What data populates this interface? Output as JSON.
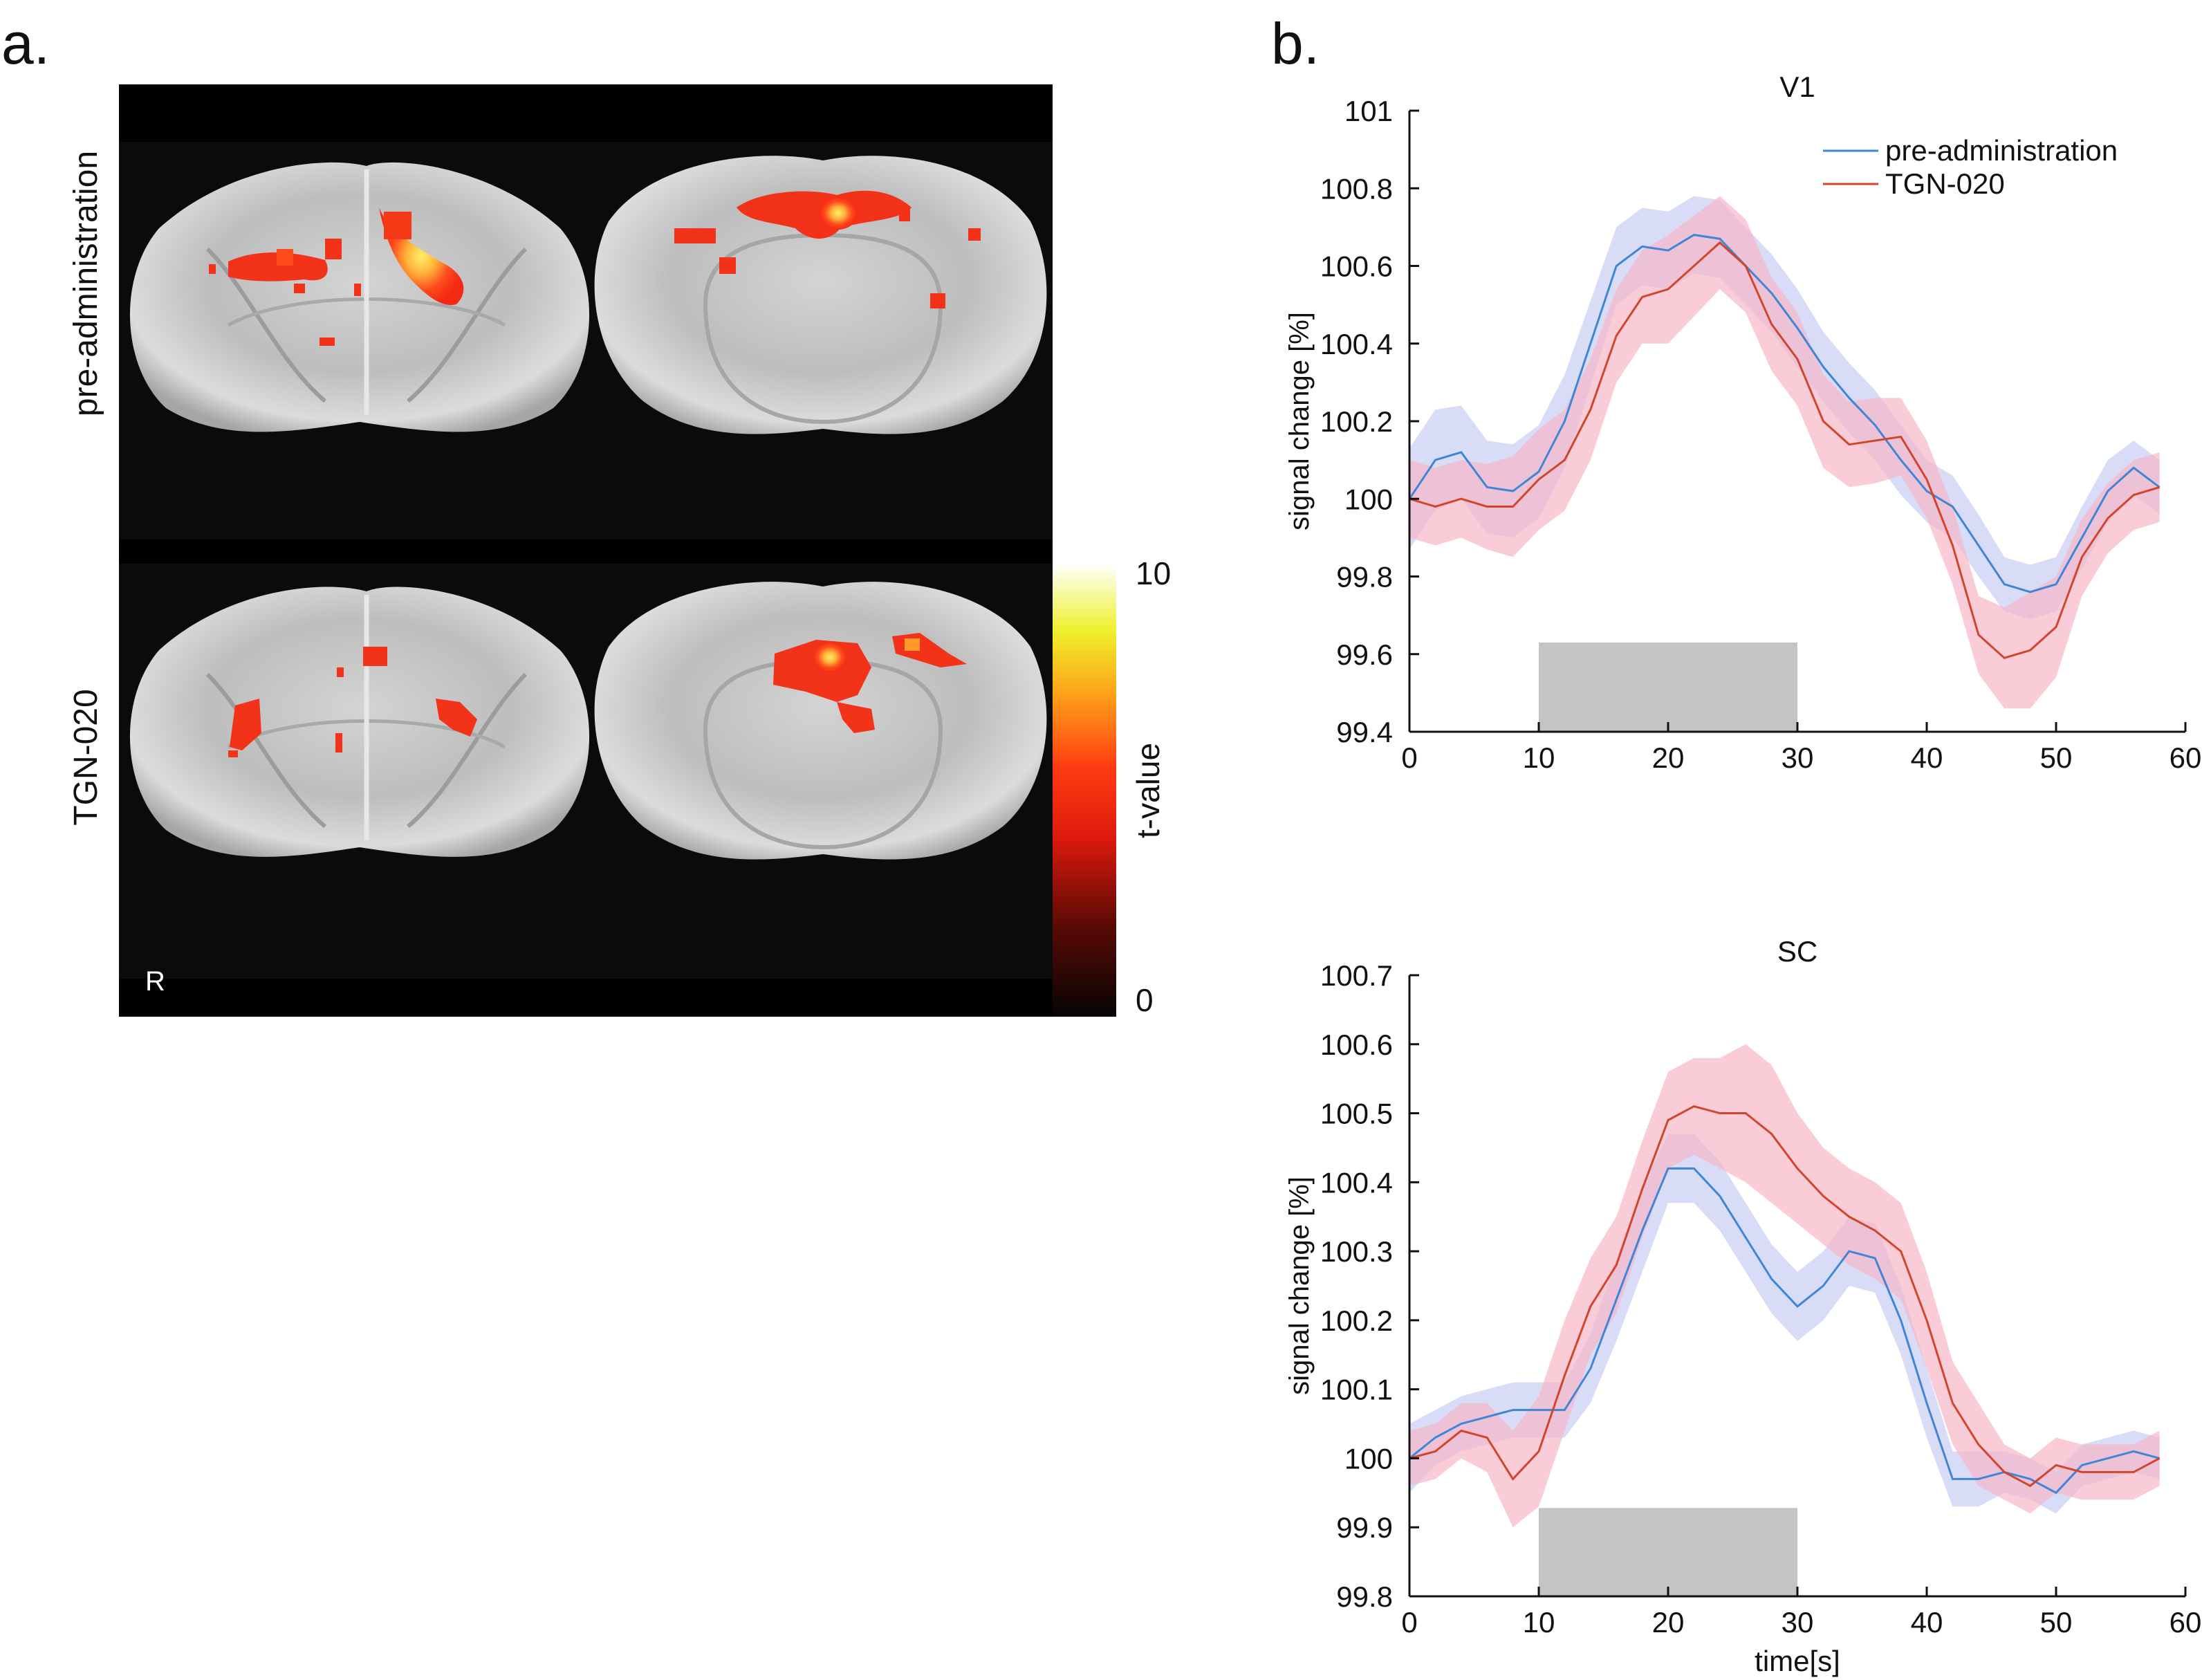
{
  "panel_a": {
    "label": "a.",
    "row_labels": [
      "pre-administration",
      "TGN-020"
    ],
    "orientation_label": "R",
    "colorbar": {
      "title": "t-value",
      "min_label": "0",
      "max_label": "10"
    }
  },
  "panel_b": {
    "label": "b."
  },
  "colors": {
    "pre_line": "#3f86d6",
    "pre_band": "#c7cdf3",
    "tgn_line": "#d2452a",
    "tgn_band": "#f6b7c8",
    "stim_block": "#c4c4c4"
  },
  "chart_data": [
    {
      "type": "line",
      "title": "V1",
      "xlabel": "",
      "ylabel": "signal change [%]",
      "xlim": [
        0,
        60
      ],
      "ylim": [
        99.4,
        101
      ],
      "xticks": [
        0,
        10,
        20,
        30,
        40,
        50,
        60
      ],
      "yticks": [
        99.4,
        99.6,
        99.8,
        100,
        100.2,
        100.4,
        100.6,
        100.8,
        101
      ],
      "legend": {
        "position": "top-right",
        "entries": [
          "pre-administration",
          "TGN-020"
        ]
      },
      "stimulus": {
        "start": 10,
        "end": 30,
        "top": 99.63
      },
      "x": [
        0,
        2,
        4,
        6,
        8,
        10,
        12,
        14,
        16,
        18,
        20,
        22,
        24,
        26,
        28,
        30,
        32,
        34,
        36,
        38,
        40,
        42,
        44,
        46,
        48,
        50,
        52,
        54,
        56,
        58
      ],
      "series": [
        {
          "name": "pre-administration",
          "values": [
            100.0,
            100.1,
            100.12,
            100.03,
            100.02,
            100.07,
            100.2,
            100.4,
            100.6,
            100.65,
            100.64,
            100.68,
            100.67,
            100.6,
            100.53,
            100.44,
            100.34,
            100.26,
            100.19,
            100.1,
            100.02,
            99.98,
            99.88,
            99.78,
            99.76,
            99.78,
            99.9,
            100.02,
            100.08,
            100.03
          ],
          "band": [
            0.13,
            0.13,
            0.12,
            0.12,
            0.12,
            0.12,
            0.12,
            0.11,
            0.1,
            0.1,
            0.1,
            0.1,
            0.1,
            0.1,
            0.1,
            0.1,
            0.09,
            0.09,
            0.09,
            0.09,
            0.08,
            0.08,
            0.08,
            0.07,
            0.07,
            0.07,
            0.08,
            0.08,
            0.07,
            0.07
          ]
        },
        {
          "name": "TGN-020",
          "values": [
            100.0,
            99.98,
            100.0,
            99.98,
            99.98,
            100.05,
            100.1,
            100.23,
            100.42,
            100.52,
            100.54,
            100.6,
            100.66,
            100.6,
            100.45,
            100.36,
            100.2,
            100.14,
            100.15,
            100.16,
            100.05,
            99.88,
            99.65,
            99.59,
            99.61,
            99.67,
            99.85,
            99.95,
            100.01,
            100.03
          ],
          "band": [
            0.1,
            0.1,
            0.1,
            0.11,
            0.13,
            0.13,
            0.13,
            0.13,
            0.12,
            0.12,
            0.14,
            0.13,
            0.12,
            0.12,
            0.12,
            0.12,
            0.12,
            0.11,
            0.11,
            0.1,
            0.1,
            0.1,
            0.1,
            0.13,
            0.15,
            0.13,
            0.1,
            0.09,
            0.09,
            0.09
          ]
        }
      ]
    },
    {
      "type": "line",
      "title": "SC",
      "xlabel": "time[s]",
      "ylabel": "signal change [%]",
      "xlim": [
        0,
        60
      ],
      "ylim": [
        99.8,
        100.7
      ],
      "xticks": [
        0,
        10,
        20,
        30,
        40,
        50,
        60
      ],
      "yticks": [
        99.8,
        99.9,
        100,
        100.1,
        100.2,
        100.3,
        100.4,
        100.5,
        100.6,
        100.7
      ],
      "stimulus": {
        "start": 10,
        "end": 30,
        "top": 99.928
      },
      "x": [
        0,
        2,
        4,
        6,
        8,
        10,
        12,
        14,
        16,
        18,
        20,
        22,
        24,
        26,
        28,
        30,
        32,
        34,
        36,
        38,
        40,
        42,
        44,
        46,
        48,
        50,
        52,
        54,
        56,
        58
      ],
      "series": [
        {
          "name": "pre-administration",
          "values": [
            100.0,
            100.03,
            100.05,
            100.06,
            100.07,
            100.07,
            100.07,
            100.13,
            100.23,
            100.33,
            100.42,
            100.42,
            100.38,
            100.32,
            100.26,
            100.22,
            100.25,
            100.3,
            100.29,
            100.2,
            100.08,
            99.97,
            99.97,
            99.98,
            99.97,
            99.95,
            99.99,
            100.0,
            100.01,
            100.0
          ],
          "band": [
            0.05,
            0.04,
            0.04,
            0.04,
            0.04,
            0.04,
            0.04,
            0.05,
            0.06,
            0.06,
            0.05,
            0.05,
            0.05,
            0.05,
            0.05,
            0.05,
            0.05,
            0.05,
            0.05,
            0.05,
            0.05,
            0.04,
            0.04,
            0.03,
            0.03,
            0.03,
            0.03,
            0.03,
            0.03,
            0.03
          ]
        },
        {
          "name": "TGN-020",
          "values": [
            100.0,
            100.01,
            100.04,
            100.03,
            99.97,
            100.01,
            100.12,
            100.22,
            100.28,
            100.39,
            100.49,
            100.51,
            100.5,
            100.5,
            100.47,
            100.42,
            100.38,
            100.35,
            100.33,
            100.3,
            100.2,
            100.08,
            100.02,
            99.98,
            99.96,
            99.99,
            99.98,
            99.98,
            99.98,
            100.0
          ],
          "band": [
            0.04,
            0.04,
            0.04,
            0.05,
            0.07,
            0.08,
            0.08,
            0.07,
            0.07,
            0.07,
            0.07,
            0.07,
            0.08,
            0.1,
            0.1,
            0.08,
            0.07,
            0.07,
            0.07,
            0.07,
            0.07,
            0.06,
            0.06,
            0.04,
            0.04,
            0.04,
            0.04,
            0.04,
            0.04,
            0.04
          ]
        }
      ]
    }
  ]
}
